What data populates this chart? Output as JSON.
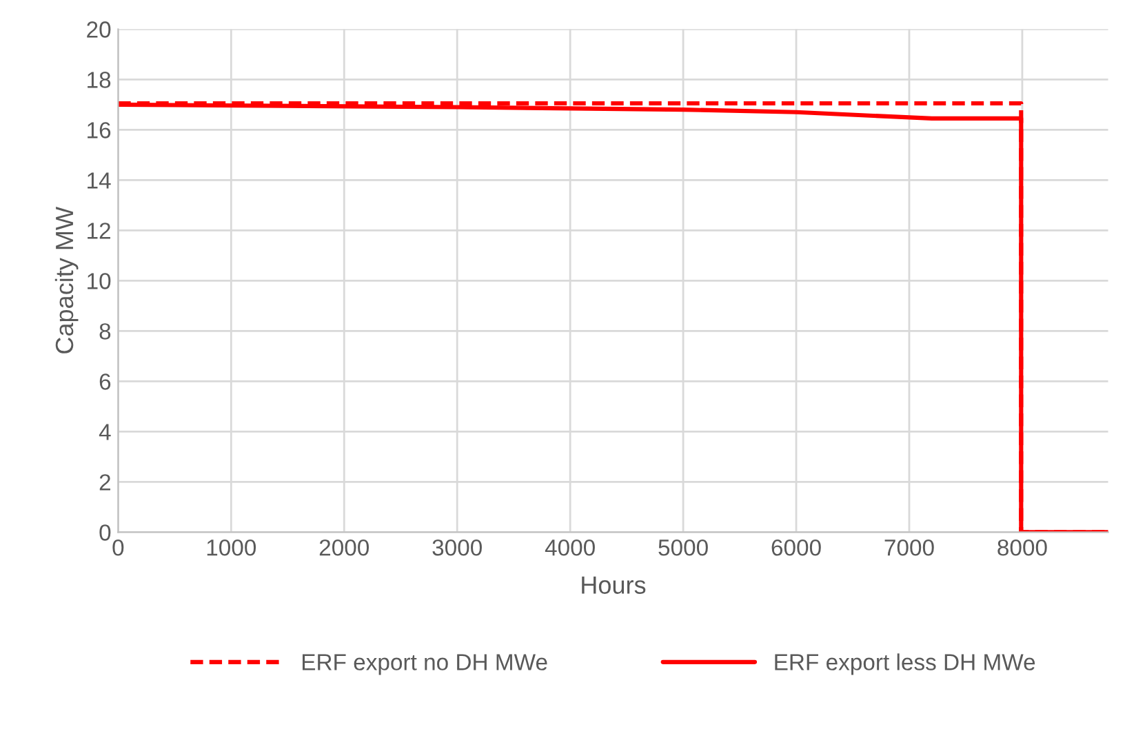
{
  "chart_data": {
    "type": "line",
    "xlabel": "Hours",
    "ylabel": "Capacity MW",
    "xlim": [
      0,
      8760
    ],
    "ylim": [
      0,
      20
    ],
    "xticks": [
      0,
      1000,
      2000,
      3000,
      4000,
      5000,
      6000,
      7000,
      8000
    ],
    "yticks": [
      0,
      2,
      4,
      6,
      8,
      10,
      12,
      14,
      16,
      18,
      20
    ],
    "grid": true,
    "legend": "bottom",
    "marker": "none",
    "series": [
      {
        "name": "ERF export no DH MWe",
        "color": "#ff0000",
        "line_style": "dashed",
        "x": [
          0,
          7990,
          7990,
          8760
        ],
        "values": [
          17.05,
          17.05,
          0,
          0
        ]
      },
      {
        "name": "ERF export less DH MWe",
        "color": "#ff0000",
        "line_style": "solid",
        "x": [
          0,
          3000,
          5000,
          6000,
          7200,
          7990,
          7990,
          8760
        ],
        "values": [
          17.0,
          16.9,
          16.8,
          16.7,
          16.45,
          16.45,
          0,
          0
        ]
      }
    ]
  }
}
